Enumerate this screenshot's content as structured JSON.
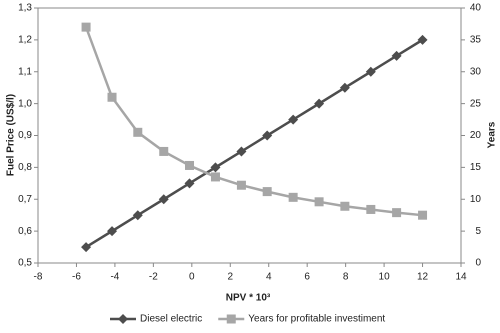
{
  "chart_data": {
    "type": "line",
    "xlabel": "NPV * 10³",
    "ylabel": "Fuel Price (US$/l)",
    "y2label": "Years",
    "xlim": [
      -8,
      14
    ],
    "xticks": [
      -8,
      -6,
      -4,
      -2,
      0,
      2,
      4,
      6,
      8,
      10,
      12,
      14
    ],
    "ylim": [
      0.5,
      1.3
    ],
    "yticks": [
      {
        "value": 0.5,
        "label": "0,5"
      },
      {
        "value": 0.6,
        "label": "0,6"
      },
      {
        "value": 0.7,
        "label": "0,7"
      },
      {
        "value": 0.8,
        "label": "0,8"
      },
      {
        "value": 0.9,
        "label": "0,9"
      },
      {
        "value": 1.0,
        "label": "1,0"
      },
      {
        "value": 1.1,
        "label": "1,1"
      },
      {
        "value": 1.2,
        "label": "1,2"
      },
      {
        "value": 1.3,
        "label": "1,3"
      }
    ],
    "y2lim": [
      0,
      40
    ],
    "y2ticks": [
      0,
      5,
      10,
      15,
      20,
      25,
      30,
      35,
      40
    ],
    "legend": "bottom",
    "series": [
      {
        "name": "Diesel electric",
        "color": "#4d4d4d",
        "marker": "diamond",
        "x": [
          -5.5,
          -4.15,
          -2.81,
          -1.46,
          -0.12,
          1.23,
          2.58,
          3.92,
          5.27,
          6.62,
          7.96,
          9.31,
          10.65,
          12
        ],
        "values": [
          0.55,
          0.6,
          0.65,
          0.7,
          0.75,
          0.8,
          0.85,
          0.9,
          0.95,
          1.0,
          1.05,
          1.1,
          1.15,
          1.2
        ]
      },
      {
        "name": "Years for profitable investiment",
        "color": "#a6a6a6",
        "marker": "square",
        "axis": "y2",
        "x": [
          -5.5,
          -4.15,
          -2.81,
          -1.46,
          -0.12,
          1.23,
          2.58,
          3.92,
          5.27,
          6.62,
          7.96,
          9.31,
          10.65,
          12
        ],
        "values": [
          37,
          26,
          20.5,
          17.5,
          15.3,
          13.5,
          12.2,
          11.2,
          10.3,
          9.6,
          8.9,
          8.4,
          7.9,
          7.5
        ]
      }
    ]
  }
}
